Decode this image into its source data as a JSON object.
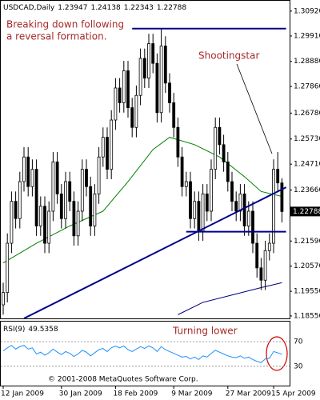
{
  "chart_data": {
    "type": "candlestick",
    "header": "USDCAD,Daily",
    "categories": [
      "12 Jan 2009",
      null,
      null,
      null,
      null,
      null,
      null,
      null,
      null,
      null,
      null,
      null,
      null,
      null,
      "30 Jan 2009",
      null,
      null,
      null,
      null,
      null,
      null,
      null,
      null,
      null,
      null,
      null,
      null,
      "18 Feb 2009",
      null,
      null,
      null,
      null,
      null,
      null,
      null,
      null,
      null,
      null,
      null,
      null,
      null,
      "9 Mar 2009",
      null,
      null,
      null,
      null,
      null,
      null,
      null,
      null,
      null,
      null,
      null,
      null,
      "27 Mar 2009",
      null,
      null,
      null,
      null,
      null,
      null,
      null,
      null,
      null,
      null,
      "15 Apr 2009",
      null,
      null
    ],
    "candles": {
      "open": [
        1.19,
        1.195,
        1.215,
        1.232,
        1.225,
        1.24,
        1.25,
        1.238,
        1.245,
        1.222,
        1.23,
        1.215,
        1.228,
        1.248,
        1.235,
        1.225,
        1.24,
        1.232,
        1.218,
        1.228,
        1.245,
        1.238,
        1.222,
        1.235,
        1.25,
        1.258,
        1.245,
        1.265,
        1.278,
        1.272,
        1.285,
        1.27,
        1.262,
        1.275,
        1.29,
        1.282,
        1.296,
        1.288,
        1.268,
        1.295,
        1.28,
        1.272,
        1.262,
        1.25,
        1.238,
        1.24,
        1.225,
        1.232,
        1.22,
        1.235,
        1.228,
        1.245,
        1.262,
        1.255,
        1.248,
        1.24,
        1.232,
        1.228,
        1.235,
        1.222,
        1.228,
        1.215,
        1.205,
        1.2,
        1.212,
        1.215,
        1.245,
        1.23947
      ],
      "high": [
        1.199,
        1.219,
        1.236,
        1.236,
        1.244,
        1.254,
        1.254,
        1.249,
        1.249,
        1.234,
        1.234,
        1.232,
        1.252,
        1.252,
        1.239,
        1.244,
        1.244,
        1.236,
        1.232,
        1.249,
        1.249,
        1.242,
        1.239,
        1.254,
        1.262,
        1.262,
        1.269,
        1.282,
        1.282,
        1.289,
        1.289,
        1.274,
        1.279,
        1.294,
        1.294,
        1.3,
        1.3,
        1.292,
        1.302,
        1.299,
        1.284,
        1.276,
        1.266,
        1.254,
        1.244,
        1.244,
        1.236,
        1.236,
        1.239,
        1.239,
        1.249,
        1.266,
        1.266,
        1.259,
        1.252,
        1.244,
        1.236,
        1.239,
        1.239,
        1.232,
        1.232,
        1.219,
        1.209,
        1.216,
        1.219,
        1.249,
        1.252,
        1.24138
      ],
      "low": [
        1.186,
        1.191,
        1.211,
        1.221,
        1.221,
        1.236,
        1.234,
        1.234,
        1.218,
        1.218,
        1.211,
        1.211,
        1.224,
        1.231,
        1.221,
        1.221,
        1.228,
        1.214,
        1.214,
        1.224,
        1.234,
        1.218,
        1.218,
        1.231,
        1.246,
        1.241,
        1.241,
        1.261,
        1.268,
        1.268,
        1.266,
        1.258,
        1.258,
        1.271,
        1.278,
        1.278,
        1.284,
        1.264,
        1.264,
        1.276,
        1.268,
        1.258,
        1.246,
        1.234,
        1.234,
        1.221,
        1.221,
        1.216,
        1.216,
        1.224,
        1.224,
        1.241,
        1.251,
        1.244,
        1.236,
        1.228,
        1.224,
        1.224,
        1.218,
        1.218,
        1.211,
        1.201,
        1.196,
        1.196,
        1.208,
        1.211,
        1.236,
        1.22343
      ],
      "close": [
        1.195,
        1.215,
        1.232,
        1.225,
        1.24,
        1.25,
        1.238,
        1.245,
        1.222,
        1.23,
        1.215,
        1.228,
        1.248,
        1.235,
        1.225,
        1.24,
        1.232,
        1.218,
        1.228,
        1.245,
        1.238,
        1.222,
        1.235,
        1.25,
        1.258,
        1.245,
        1.265,
        1.278,
        1.272,
        1.285,
        1.27,
        1.262,
        1.275,
        1.29,
        1.282,
        1.296,
        1.288,
        1.268,
        1.295,
        1.28,
        1.272,
        1.262,
        1.25,
        1.238,
        1.24,
        1.225,
        1.232,
        1.22,
        1.235,
        1.228,
        1.245,
        1.262,
        1.255,
        1.248,
        1.24,
        1.232,
        1.228,
        1.235,
        1.222,
        1.228,
        1.215,
        1.205,
        1.2,
        1.212,
        1.215,
        1.245,
        1.23947,
        1.22788
      ]
    },
    "color_up": "#ffffff",
    "color_down": "#000000",
    "ylim": [
      1.1845,
      1.3137
    ],
    "yticks": [
      {
        "value": 1.3092,
        "label": "1.30920"
      },
      {
        "value": 1.2991,
        "label": "1.29910"
      },
      {
        "value": 1.2888,
        "label": "1.28880"
      },
      {
        "value": 1.2786,
        "label": "1.27860"
      },
      {
        "value": 1.2678,
        "label": "1.26780"
      },
      {
        "value": 1.2573,
        "label": "1.25730"
      },
      {
        "value": 1.2471,
        "label": "1.24710"
      },
      {
        "value": 1.2366,
        "label": "1.23660"
      },
      {
        "value": 1.2159,
        "label": "1.21590"
      },
      {
        "value": 1.2057,
        "label": "1.20570"
      },
      {
        "value": 1.1955,
        "label": "1.19550"
      },
      {
        "value": 1.1855,
        "label": "1.18550"
      }
    ],
    "overlays": [
      {
        "color": "#008000",
        "x": [
          0,
          8,
          16,
          24,
          30,
          36,
          40,
          46,
          52,
          58,
          62,
          67
        ],
        "values": [
          1.207,
          1.215,
          1.222,
          1.228,
          1.24,
          1.253,
          1.258,
          1.255,
          1.25,
          1.242,
          1.236,
          1.234
        ]
      },
      {
        "color": "#00007f",
        "x": [
          42,
          48,
          55,
          62,
          67
        ],
        "values": [
          1.186,
          1.191,
          1.194,
          1.197,
          1.199
        ]
      }
    ],
    "trendlines": [
      {
        "color": "#00008b",
        "x": [
          5,
          68
        ],
        "values": [
          1.1845,
          1.2377
        ]
      },
      {
        "color": "#00008b",
        "x": [
          31,
          68
        ],
        "values": [
          1.3021,
          1.3021
        ]
      },
      {
        "color": "#00008b",
        "x": [
          44,
          68
        ],
        "values": [
          1.2197,
          1.2197
        ]
      }
    ],
    "annotations": [
      "Breaking down following",
      "a reversal formation.",
      "Shootingstar"
    ],
    "rsi": {
      "title": "RSI(9)",
      "color": "#1e90ff",
      "ylim": [
        0,
        100
      ],
      "yticks": [
        30,
        70
      ],
      "annotation": "Turning lower",
      "values": [
        55,
        60,
        64,
        58,
        62,
        64,
        58,
        60,
        50,
        53,
        48,
        52,
        58,
        53,
        49,
        54,
        51,
        46,
        50,
        56,
        53,
        47,
        52,
        57,
        59,
        54,
        60,
        63,
        60,
        63,
        57,
        54,
        58,
        62,
        59,
        63,
        60,
        54,
        62,
        57,
        54,
        51,
        48,
        45,
        46,
        42,
        45,
        41,
        47,
        45,
        51,
        56,
        53,
        50,
        47,
        45,
        44,
        47,
        43,
        45,
        41,
        38,
        36,
        42,
        43,
        54,
        52,
        49.5358
      ]
    },
    "copyright": "© 2001-2008 MetaQuotes Software Corp."
  }
}
